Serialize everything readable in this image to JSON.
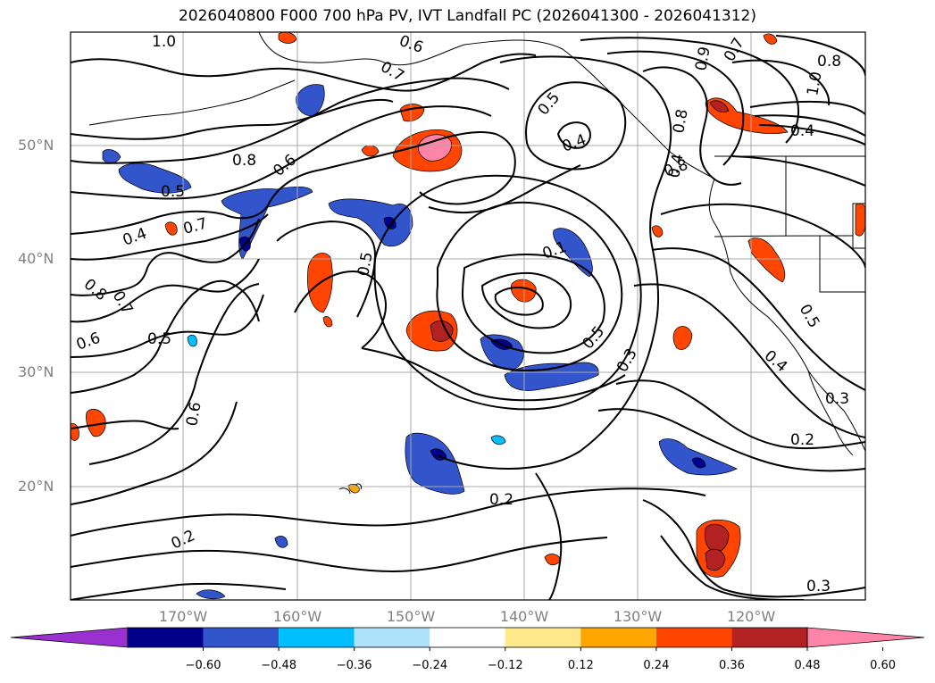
{
  "title": "2026040800 F000 700 hPa PV, IVT Landfall PC (2026041300 - 2026041312)",
  "lat_labels": [
    "50°N",
    "40°N",
    "30°N",
    "20°N"
  ],
  "lon_labels": [
    "170°W",
    "160°W",
    "150°W",
    "140°W",
    "130°W",
    "120°W"
  ],
  "colorbar": {
    "colors": [
      "#9b30d0",
      "#00008b",
      "#3355cc",
      "#00bfff",
      "#aee2fa",
      "#ffffff",
      "#ffe88a",
      "#ffa500",
      "#ff4500",
      "#b22222",
      "#ff85a8"
    ],
    "tick_labels": [
      "−0.60",
      "−0.48",
      "−0.36",
      "−0.24",
      "−0.12",
      "0.12",
      "0.24",
      "0.36",
      "0.48",
      "0.60"
    ]
  },
  "contour_labels": [
    "1.0",
    "0.6",
    "0.7",
    "0.8",
    "0.8",
    "0.8",
    "0.9",
    "0.8",
    "0.7",
    "1.0",
    "0.4",
    "0.5",
    "0.4",
    "0.6",
    "0.5",
    "0.7",
    "0.4",
    "0.1",
    "0.5",
    "0.8",
    "0.7",
    "0.6",
    "0.5",
    "0.5",
    "0.6",
    "0.3",
    "0.5",
    "0.4",
    "0.4",
    "0.3",
    "0.2",
    "0.2",
    "0.2",
    "0.3"
  ]
}
